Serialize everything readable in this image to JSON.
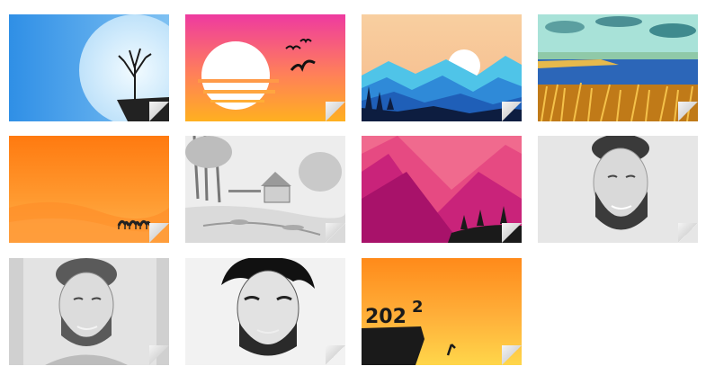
{
  "gallery": {
    "tiles": [
      {
        "id": "tile-moon-tree",
        "theme": "blue-moon-tree"
      },
      {
        "id": "tile-sunset-birds",
        "theme": "pink-orange-sunset-birds"
      },
      {
        "id": "tile-mountain-sunrise",
        "theme": "peach-sky-blue-mountains"
      },
      {
        "id": "tile-lake-grass",
        "theme": "painted-lake-grass"
      },
      {
        "id": "tile-desert-camels",
        "theme": "orange-desert-camels"
      },
      {
        "id": "tile-pencil-cottage",
        "theme": "pencil-cottage-landscape"
      },
      {
        "id": "tile-magenta-mountains",
        "theme": "magenta-mountains-trees"
      },
      {
        "id": "tile-sketch-portrait-1",
        "theme": "pencil-portrait-bearded-man"
      },
      {
        "id": "tile-sketch-portrait-2",
        "theme": "pencil-portrait-smiling-man"
      },
      {
        "id": "tile-sketch-portrait-3",
        "theme": "charcoal-portrait-man"
      },
      {
        "id": "tile-2022-cliff",
        "theme": "sunset-2022-cliff",
        "year_text": "202",
        "year_last": "2"
      }
    ]
  },
  "colors": {
    "sky_blue": "#3aa0ee",
    "moon": "#d8eefc",
    "sunset_pink": "#ee3f9c",
    "sunset_orange": "#ffa222",
    "peach": "#f8c79a",
    "mountain_blue": "#2e7fd6",
    "desert_orange": "#ff8c1a",
    "magenta": "#c0187a",
    "pencil_grey": "#d6d6d6"
  }
}
